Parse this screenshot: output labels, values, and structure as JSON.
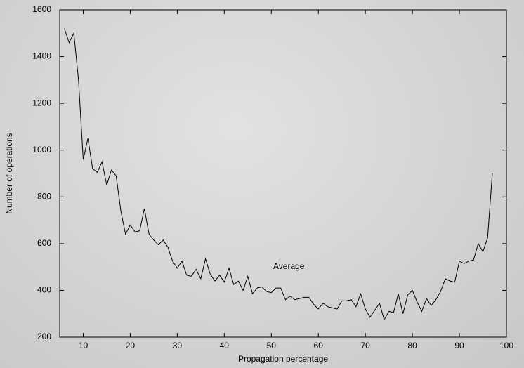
{
  "chart_data": {
    "type": "line",
    "xlabel": "Propagation percentage",
    "ylabel": "Number of operations",
    "annotation": "Average",
    "x": [
      6,
      7,
      8,
      9,
      10,
      11,
      12,
      13,
      14,
      15,
      16,
      17,
      18,
      19,
      20,
      21,
      22,
      23,
      24,
      25,
      26,
      27,
      28,
      29,
      30,
      31,
      32,
      33,
      34,
      35,
      36,
      37,
      38,
      39,
      40,
      41,
      42,
      43,
      44,
      45,
      46,
      47,
      48,
      49,
      50,
      51,
      52,
      53,
      54,
      55,
      56,
      57,
      58,
      59,
      60,
      61,
      62,
      63,
      64,
      65,
      66,
      67,
      68,
      69,
      70,
      71,
      72,
      73,
      74,
      75,
      76,
      77,
      78,
      79,
      80,
      81,
      82,
      83,
      84,
      85,
      86,
      87,
      88,
      89,
      90,
      91,
      92,
      93,
      94,
      95,
      96,
      97
    ],
    "series": [
      {
        "name": "Average",
        "color": "#000000",
        "values": [
          1520,
          1460,
          1500,
          1300,
          960,
          1050,
          920,
          905,
          950,
          850,
          915,
          890,
          740,
          640,
          680,
          650,
          655,
          750,
          640,
          615,
          595,
          615,
          585,
          525,
          495,
          525,
          465,
          460,
          490,
          450,
          535,
          470,
          440,
          465,
          435,
          495,
          425,
          440,
          400,
          460,
          385,
          410,
          415,
          395,
          390,
          410,
          410,
          360,
          375,
          360,
          365,
          370,
          370,
          340,
          320,
          345,
          330,
          325,
          320,
          355,
          355,
          360,
          330,
          385,
          320,
          285,
          315,
          345,
          275,
          310,
          305,
          385,
          300,
          380,
          400,
          350,
          310,
          365,
          335,
          360,
          395,
          450,
          440,
          435,
          525,
          515,
          525,
          530,
          600,
          565,
          625,
          900
        ]
      }
    ],
    "xlim": [
      5,
      100
    ],
    "xticks": [
      10,
      20,
      30,
      40,
      50,
      60,
      70,
      80,
      90,
      100
    ],
    "ylim": [
      200,
      1600
    ],
    "yticks": [
      200,
      400,
      600,
      800,
      1000,
      1200,
      1400,
      1600
    ]
  }
}
